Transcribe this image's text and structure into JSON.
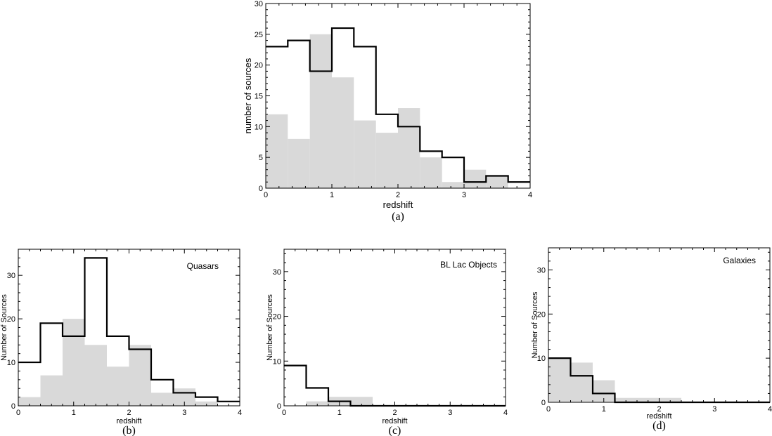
{
  "chart_data": [
    {
      "id": "a",
      "type": "bar",
      "title": "",
      "panel_label": "(a)",
      "xlabel": "redshift",
      "ylabel": "number of sources",
      "xlim": [
        0,
        4
      ],
      "ylim": [
        0,
        30
      ],
      "xticks": [
        0,
        1,
        2,
        3,
        4
      ],
      "yticks": [
        0,
        5,
        10,
        15,
        20,
        25,
        30
      ],
      "bin_edges": [
        0,
        0.333,
        0.667,
        1.0,
        1.333,
        1.667,
        2.0,
        2.333,
        2.667,
        3.0,
        3.333,
        3.667,
        4.0
      ],
      "series": [
        {
          "style": "filled-gray",
          "values": [
            12,
            8,
            25,
            18,
            11,
            9,
            13,
            5,
            1,
            3,
            2,
            0
          ]
        },
        {
          "style": "step-outline",
          "values": [
            23,
            24,
            19,
            26,
            23,
            12,
            10,
            6,
            5,
            1,
            2,
            1
          ]
        }
      ]
    },
    {
      "id": "b",
      "type": "bar",
      "title": "Quasars",
      "panel_label": "(b)",
      "xlabel": "redshift",
      "ylabel": "Number of Sources",
      "xlim": [
        0,
        4
      ],
      "ylim": [
        0,
        36
      ],
      "xticks": [
        0,
        1,
        2,
        3,
        4
      ],
      "yticks": [
        0,
        10,
        20,
        30
      ],
      "bin_edges": [
        0,
        0.4,
        0.8,
        1.2,
        1.6,
        2.0,
        2.4,
        2.8,
        3.2,
        3.6,
        4.0
      ],
      "series": [
        {
          "style": "filled-gray",
          "values": [
            2,
            7,
            20,
            14,
            9,
            14,
            3,
            4,
            1,
            0
          ]
        },
        {
          "style": "step-outline",
          "values": [
            10,
            19,
            16,
            34,
            16,
            13,
            6,
            3,
            2,
            1
          ]
        }
      ]
    },
    {
      "id": "c",
      "type": "bar",
      "title": "BL Lac Objects",
      "panel_label": "(c)",
      "xlabel": "redshift",
      "ylabel": "Number of Sources",
      "xlim": [
        0,
        4
      ],
      "ylim": [
        0,
        35
      ],
      "xticks": [
        0,
        1,
        2,
        3,
        4
      ],
      "yticks": [
        0,
        10,
        20,
        30
      ],
      "bin_edges": [
        0,
        0.4,
        0.8,
        1.2,
        1.6,
        2.0,
        2.4,
        2.8,
        3.2,
        3.6,
        4.0
      ],
      "series": [
        {
          "style": "filled-gray",
          "values": [
            0,
            1,
            2,
            2,
            0,
            0,
            0,
            0,
            0,
            0
          ]
        },
        {
          "style": "step-outline",
          "values": [
            9,
            4,
            1,
            0,
            0,
            0,
            0,
            0,
            0,
            0
          ]
        }
      ]
    },
    {
      "id": "d",
      "type": "bar",
      "title": "Galaxies",
      "panel_label": "(d)",
      "xlabel": "redshift",
      "ylabel": "Number of Sources",
      "xlim": [
        0,
        4
      ],
      "ylim": [
        0,
        35
      ],
      "xticks": [
        0,
        1,
        2,
        3,
        4
      ],
      "yticks": [
        0,
        10,
        20,
        30
      ],
      "bin_edges": [
        0,
        0.4,
        0.8,
        1.2,
        1.6,
        2.0,
        2.4,
        2.8,
        3.2,
        3.6,
        4.0
      ],
      "series": [
        {
          "style": "filled-gray",
          "values": [
            10,
            9,
            5,
            1,
            1,
            1,
            0,
            0,
            0,
            0
          ]
        },
        {
          "style": "step-outline",
          "values": [
            10,
            6,
            2,
            0,
            0,
            0,
            0,
            0,
            0,
            0
          ]
        }
      ]
    }
  ],
  "colors": {
    "fill": "#d9d9d9",
    "outline": "#000000",
    "frame": "#000000"
  }
}
